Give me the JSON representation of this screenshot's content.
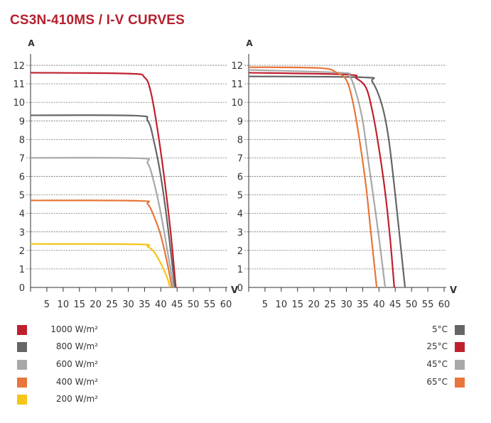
{
  "title": "CS3N-410MS / I-V CURVES",
  "chart_data": [
    {
      "type": "line",
      "title": "",
      "ylabel": "A",
      "xlabel": "V",
      "xlim": [
        0,
        60
      ],
      "ylim": [
        0,
        12
      ],
      "xticks": [
        5,
        10,
        15,
        20,
        25,
        30,
        35,
        40,
        45,
        50,
        55,
        60
      ],
      "yticks": [
        0,
        1,
        2,
        3,
        4,
        5,
        6,
        7,
        8,
        9,
        10,
        11,
        12
      ],
      "grid": "horizontal dashed",
      "legend_placement": "bottom-left",
      "series": [
        {
          "name": "1000 W/m²",
          "color": "#c0202e",
          "points": [
            [
              0,
              11.6
            ],
            [
              30,
              11.55
            ],
            [
              35,
              11.35
            ],
            [
              37,
              10.5
            ],
            [
              39,
              8.5
            ],
            [
              41,
              6
            ],
            [
              43,
              3
            ],
            [
              44.6,
              0
            ]
          ]
        },
        {
          "name": "800 W/m²",
          "color": "#666666",
          "points": [
            [
              0,
              9.3
            ],
            [
              32,
              9.28
            ],
            [
              36,
              9.0
            ],
            [
              38,
              7.8
            ],
            [
              40,
              6
            ],
            [
              42,
              3.5
            ],
            [
              44.3,
              0
            ]
          ]
        },
        {
          "name": "600 W/m²",
          "color": "#a8a8a8",
          "points": [
            [
              0,
              7
            ],
            [
              33,
              6.98
            ],
            [
              36,
              6.7
            ],
            [
              38,
              5.6
            ],
            [
              40,
              4
            ],
            [
              42,
              2
            ],
            [
              43.9,
              0
            ]
          ]
        },
        {
          "name": "400 W/m²",
          "color": "#e8753a",
          "points": [
            [
              0,
              4.7
            ],
            [
              33,
              4.68
            ],
            [
              36,
              4.5
            ],
            [
              38,
              3.8
            ],
            [
              40,
              2.8
            ],
            [
              42,
              1.3
            ],
            [
              43.4,
              0
            ]
          ]
        },
        {
          "name": "200 W/m²",
          "color": "#f5c518",
          "points": [
            [
              0,
              2.35
            ],
            [
              33,
              2.33
            ],
            [
              36,
              2.2
            ],
            [
              38,
              1.9
            ],
            [
              40,
              1.3
            ],
            [
              42,
              0.5
            ],
            [
              42.8,
              0
            ]
          ]
        }
      ]
    },
    {
      "type": "line",
      "title": "",
      "ylabel": "A",
      "xlabel": "V",
      "xlim": [
        0,
        60
      ],
      "ylim": [
        0,
        12
      ],
      "xticks": [
        5,
        10,
        15,
        20,
        25,
        30,
        35,
        40,
        45,
        50,
        55,
        60
      ],
      "yticks": [
        0,
        1,
        2,
        3,
        4,
        5,
        6,
        7,
        8,
        9,
        10,
        11,
        12
      ],
      "grid": "horizontal dashed",
      "legend_placement": "bottom-right",
      "series": [
        {
          "name": "5°C",
          "color": "#666666",
          "points": [
            [
              0,
              11.4
            ],
            [
              35,
              11.35
            ],
            [
              38,
              11.1
            ],
            [
              41,
              9.8
            ],
            [
              43,
              8
            ],
            [
              45,
              5
            ],
            [
              46.5,
              2.5
            ],
            [
              48,
              0
            ]
          ]
        },
        {
          "name": "25°C",
          "color": "#c0202e",
          "points": [
            [
              0,
              11.6
            ],
            [
              30,
              11.5
            ],
            [
              33,
              11.3
            ],
            [
              36,
              10.8
            ],
            [
              38,
              9.5
            ],
            [
              40,
              7.5
            ],
            [
              42,
              5
            ],
            [
              43.5,
              2.5
            ],
            [
              44.7,
              0
            ]
          ]
        },
        {
          "name": "45°C",
          "color": "#a8a8a8",
          "points": [
            [
              0,
              11.75
            ],
            [
              28,
              11.6
            ],
            [
              31,
              11.4
            ],
            [
              33,
              10.5
            ],
            [
              35,
              9
            ],
            [
              37,
              6.5
            ],
            [
              39,
              4
            ],
            [
              40.5,
              2
            ],
            [
              41.9,
              0
            ]
          ]
        },
        {
          "name": "65°C",
          "color": "#e8753a",
          "points": [
            [
              0,
              11.9
            ],
            [
              22,
              11.85
            ],
            [
              27,
              11.6
            ],
            [
              30,
              11.2
            ],
            [
              32,
              10
            ],
            [
              34,
              8
            ],
            [
              36,
              5.5
            ],
            [
              37.5,
              3
            ],
            [
              39.3,
              0
            ]
          ]
        }
      ]
    }
  ]
}
